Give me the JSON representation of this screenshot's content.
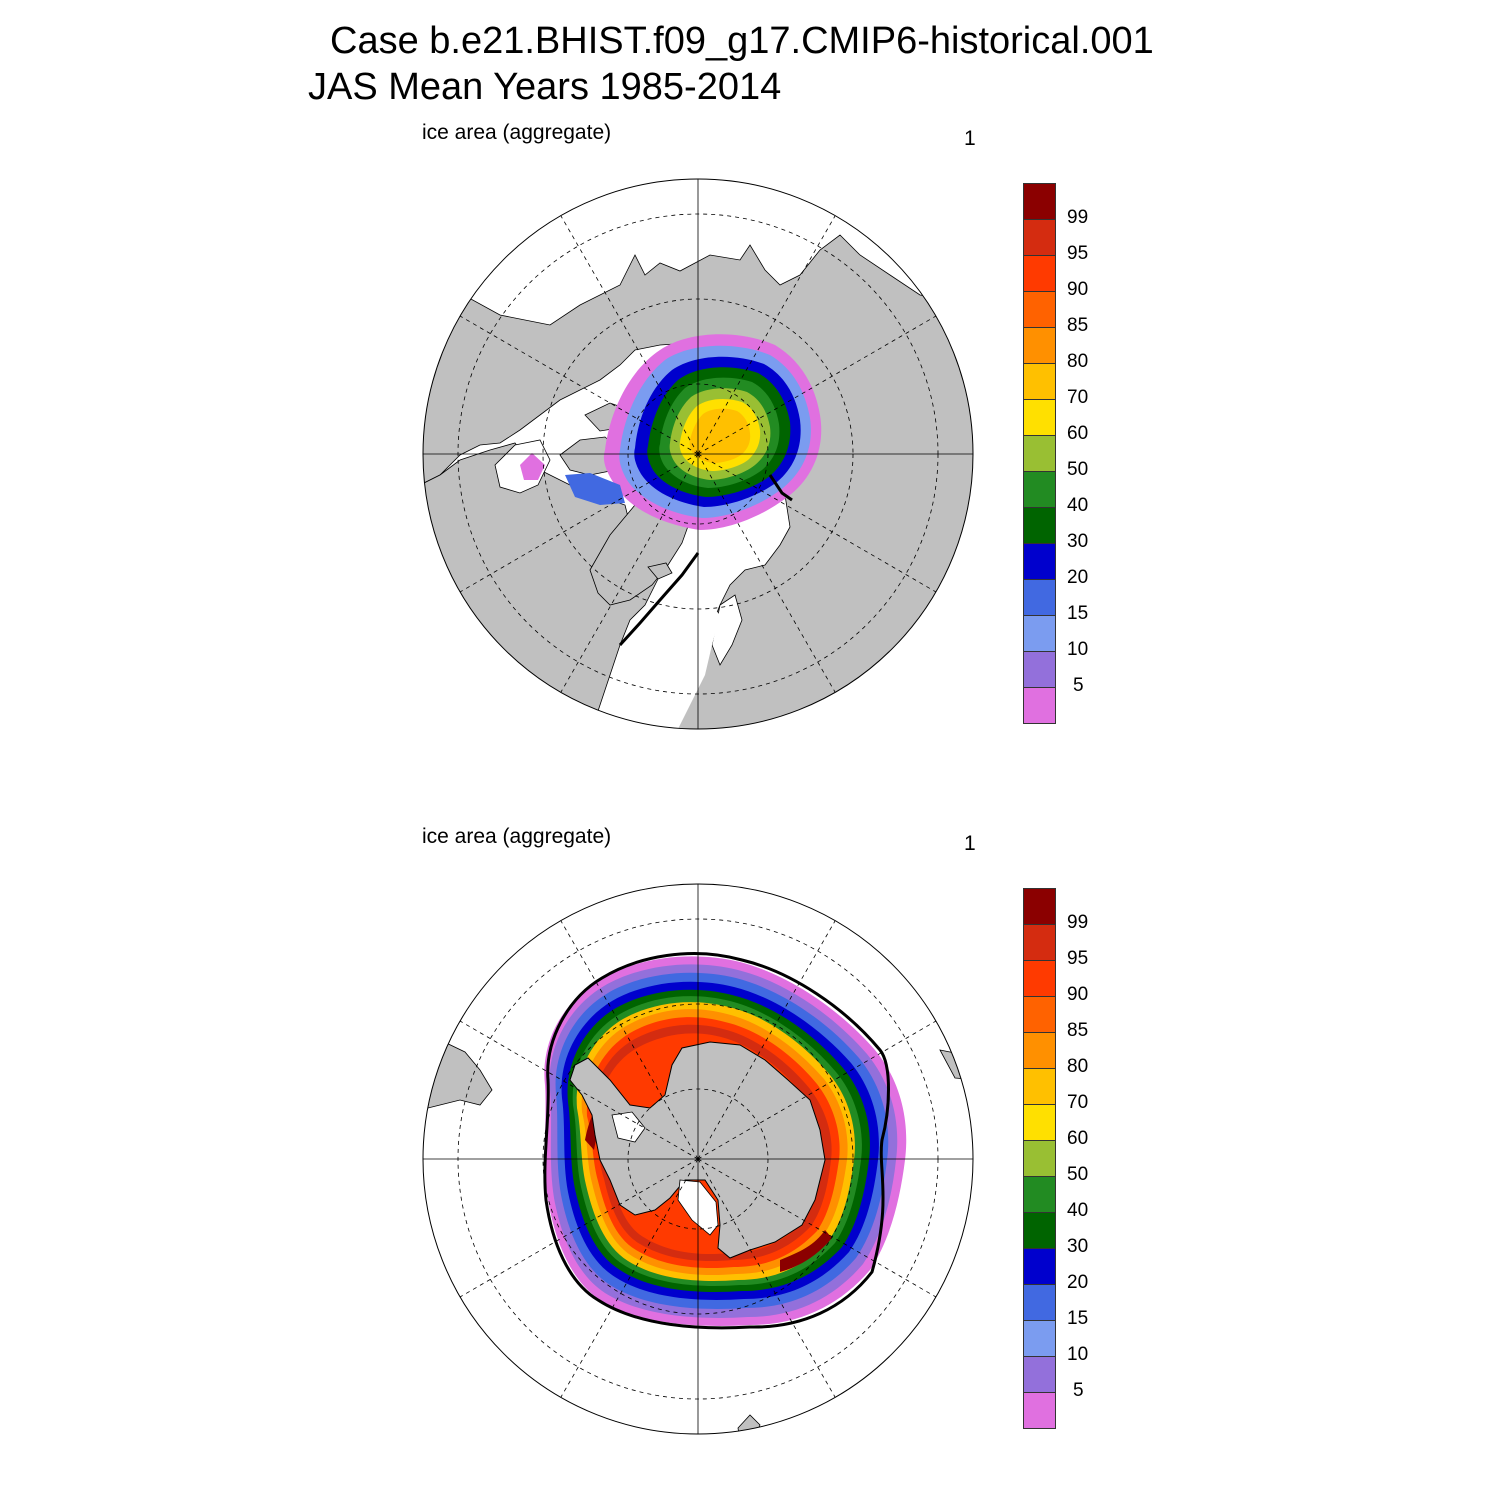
{
  "title": {
    "line1": "Case b.e21.BHIST.f09_g17.CMIP6-historical.001",
    "line2": "JAS Mean   Years 1985-2014"
  },
  "colorbar": {
    "labels": [
      "99",
      "95",
      "90",
      "85",
      "80",
      "70",
      "60",
      "50",
      "40",
      "30",
      "20",
      "15",
      "10",
      "5"
    ],
    "colors": [
      "#8b0000",
      "#d42c10",
      "#ff3a00",
      "#ff6200",
      "#ff9000",
      "#ffc000",
      "#ffe000",
      "#99bf33",
      "#228b22",
      "#006400",
      "#0000cd",
      "#4169e1",
      "#7b9cf0",
      "#9370db",
      "#e070e0"
    ]
  },
  "colors": {
    "land": "#c0c0c0",
    "ocean": "#ffffff",
    "grid": "#000000"
  },
  "panels": [
    {
      "id": "north",
      "label": "ice area  (aggregate)",
      "right": "1",
      "hemisphere": "Arctic"
    },
    {
      "id": "south",
      "label": "ice area  (aggregate)",
      "right": "1",
      "hemisphere": "Antarctic"
    }
  ]
}
